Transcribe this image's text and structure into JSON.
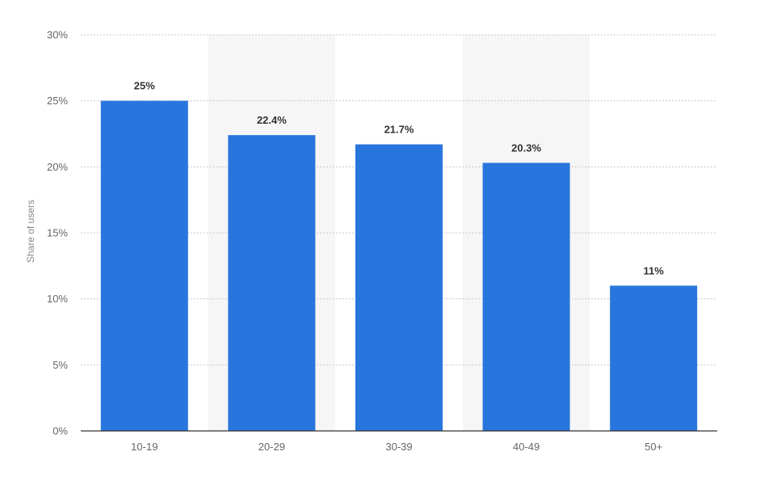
{
  "chart_data": {
    "type": "bar",
    "categories": [
      "10-19",
      "20-29",
      "30-39",
      "40-49",
      "50+"
    ],
    "values": [
      25,
      22.4,
      21.7,
      20.3,
      11
    ],
    "data_labels": [
      "25%",
      "22.4%",
      "21.7%",
      "20.3%",
      "11%"
    ],
    "ylabel": "Share of users",
    "xlabel": "",
    "ylim": [
      0,
      30
    ],
    "yticks": [
      0,
      5,
      10,
      15,
      20,
      25,
      30
    ],
    "ytick_labels": [
      "0%",
      "5%",
      "10%",
      "15%",
      "20%",
      "25%",
      "30%"
    ],
    "grid": true,
    "alternating_column_shading": true,
    "colors": {
      "bar": "#2876DD",
      "shade": "#F6F6F6",
      "grid": "#C8C8C8",
      "axis": "#333333"
    }
  }
}
